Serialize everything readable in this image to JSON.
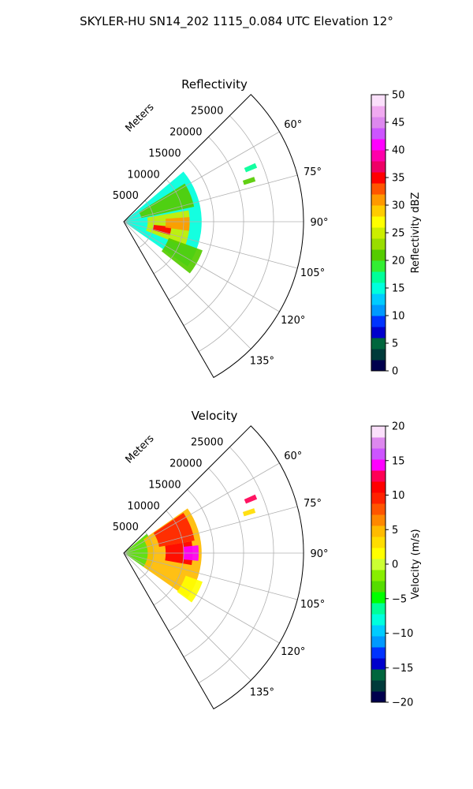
{
  "figure": {
    "suptitle": "SKYLER-HU  SN14_202  1115_0.084 UTC Elevation 12°"
  },
  "chart_data": [
    {
      "type": "polar-sector-heatmap",
      "title": "Reflectivity",
      "radial_label": "Meters",
      "radial_ticks": [
        5000,
        10000,
        15000,
        20000,
        25000
      ],
      "radial_tick_labels": [
        "5000",
        "10000",
        "15000",
        "20000",
        "25000"
      ],
      "rmax": 30000,
      "azimuth_range_deg": [
        45,
        150
      ],
      "azimuth_ticks": [
        60,
        75,
        90,
        105,
        120,
        135
      ],
      "azimuth_tick_labels": [
        "60°",
        "75°",
        "90°",
        "105°",
        "120°",
        "135°"
      ],
      "grid": true,
      "colorbar": {
        "label": "Reflectivity dBZ",
        "min": 0,
        "max": 50,
        "ticks": [
          0,
          5,
          10,
          15,
          20,
          25,
          30,
          35,
          40,
          45,
          50
        ],
        "tick_labels": [
          "0",
          "5",
          "10",
          "15",
          "20",
          "25",
          "30",
          "35",
          "40",
          "45",
          "50"
        ],
        "colors": [
          "#00004d",
          "#003a3a",
          "#00663d",
          "#0000cc",
          "#0033ff",
          "#0099ff",
          "#00ccff",
          "#00ffdd",
          "#00ff99",
          "#33ee33",
          "#55cc00",
          "#99dd00",
          "#ccee00",
          "#ffff00",
          "#ffcc00",
          "#ff9900",
          "#ff5500",
          "#ff0000",
          "#ee0066",
          "#ff00aa",
          "#ff00ff",
          "#cc55ff",
          "#dd88ee",
          "#f0aaf0",
          "#fbe0fb"
        ]
      },
      "echo_regions": [
        {
          "az": [
            50,
            125
          ],
          "r": [
            0,
            13000
          ],
          "value": 15
        },
        {
          "az": [
            58,
            78
          ],
          "r": [
            3000,
            12000
          ],
          "value": 21
        },
        {
          "az": [
            80,
            112
          ],
          "r": [
            4000,
            11000
          ],
          "value": 24
        },
        {
          "az": [
            96,
            106
          ],
          "r": [
            5000,
            8000
          ],
          "value": 34
        },
        {
          "az": [
            86,
            98
          ],
          "r": [
            7000,
            11000
          ],
          "value": 30
        },
        {
          "az": [
            110,
            128
          ],
          "r": [
            8000,
            14000
          ],
          "value": 20
        },
        {
          "az": [
            66,
            68
          ],
          "r": [
            22000,
            24000
          ],
          "value": 17
        },
        {
          "az": [
            71,
            73
          ],
          "r": [
            21000,
            23000
          ],
          "value": 20
        }
      ]
    },
    {
      "type": "polar-sector-heatmap",
      "title": "Velocity",
      "radial_label": "Meters",
      "radial_ticks": [
        5000,
        10000,
        15000,
        20000,
        25000
      ],
      "radial_tick_labels": [
        "5000",
        "10000",
        "15000",
        "20000",
        "25000"
      ],
      "rmax": 30000,
      "azimuth_range_deg": [
        45,
        150
      ],
      "azimuth_ticks": [
        60,
        75,
        90,
        105,
        120,
        135
      ],
      "azimuth_tick_labels": [
        "60°",
        "75°",
        "90°",
        "105°",
        "120°",
        "135°"
      ],
      "grid": true,
      "colorbar": {
        "label": "Velocity (m/s)",
        "min": -20,
        "max": 20,
        "ticks": [
          -20,
          -15,
          -10,
          -5,
          0,
          5,
          10,
          15,
          20
        ],
        "tick_labels": [
          "−20",
          "−15",
          "−10",
          "−5",
          "0",
          "5",
          "10",
          "15",
          "20"
        ],
        "colors": [
          "#00004d",
          "#003a3a",
          "#00663d",
          "#0000cc",
          "#0033ff",
          "#0099ff",
          "#00ccff",
          "#00ffdd",
          "#00ff99",
          "#00ff00",
          "#55dd00",
          "#88ee00",
          "#ccff33",
          "#ffff00",
          "#ffdd00",
          "#ffbb00",
          "#ff8800",
          "#ff5500",
          "#ff2200",
          "#ff0000",
          "#ff0055",
          "#ff00ff",
          "#cc55ff",
          "#dd88ee",
          "#fbe0fb"
        ]
      },
      "echo_regions": [
        {
          "az": [
            50,
            125
          ],
          "r": [
            0,
            5000
          ],
          "value": -3
        },
        {
          "az": [
            55,
            125
          ],
          "r": [
            4000,
            13000
          ],
          "value": 4
        },
        {
          "az": [
            56,
            80
          ],
          "r": [
            6000,
            12000
          ],
          "value": 9
        },
        {
          "az": [
            80,
            100
          ],
          "r": [
            7000,
            11500
          ],
          "value": 11
        },
        {
          "az": [
            84,
            96
          ],
          "r": [
            10000,
            12500
          ],
          "value": 14
        },
        {
          "az": [
            110,
            126
          ],
          "r": [
            11000,
            14000
          ],
          "value": 2
        },
        {
          "az": [
            66,
            68
          ],
          "r": [
            22000,
            24000
          ],
          "value": 12
        },
        {
          "az": [
            71,
            73
          ],
          "r": [
            21000,
            23000
          ],
          "value": 3
        }
      ]
    }
  ]
}
